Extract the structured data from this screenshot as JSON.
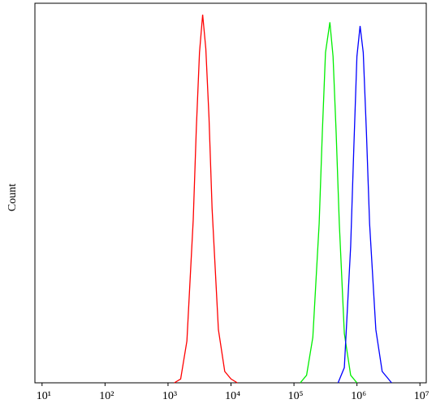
{
  "chart_data": {
    "type": "line",
    "y_label": "Count",
    "log_x": true,
    "xlim": [
      7.7,
      12600000
    ],
    "ylim": [
      0,
      100
    ],
    "xticks": [
      {
        "value": 10,
        "label": "10¹"
      },
      {
        "value": 100,
        "label": "10²"
      },
      {
        "value": 1000,
        "label": "10³"
      },
      {
        "value": 10000,
        "label": "10⁴"
      },
      {
        "value": 100000,
        "label": "10⁵"
      },
      {
        "value": 1000000,
        "label": "10⁶"
      },
      {
        "value": 10000000,
        "label": "10⁷"
      }
    ],
    "series": [
      {
        "color": "#ff0000",
        "x": [
          1259,
          1585,
          1995,
          2512,
          2818,
          3162,
          3548,
          3981,
          4467,
          5012,
          6310,
          7943,
          10000,
          12589
        ],
        "values": [
          0,
          1,
          11,
          43,
          67,
          87,
          97,
          88,
          70,
          46,
          14,
          3,
          1,
          0
        ]
      },
      {
        "color": "#00ee00",
        "x": [
          125893,
          158489,
          199526,
          251189,
          281838,
          316228,
          371535,
          416869,
          467735,
          524807,
          630957,
          794328,
          1000000
        ],
        "values": [
          0,
          2,
          12,
          42,
          66,
          87,
          95,
          86,
          66,
          42,
          13,
          2,
          0
        ]
      },
      {
        "color": "#0000ff",
        "x": [
          501187,
          630957,
          794328,
          891251,
          1000000,
          1122018,
          1258925,
          1412538,
          1584893,
          1995262,
          2511886,
          3548134
        ],
        "values": [
          0,
          4,
          36,
          62,
          86,
          94,
          87,
          66,
          42,
          14,
          3,
          0
        ]
      }
    ]
  }
}
